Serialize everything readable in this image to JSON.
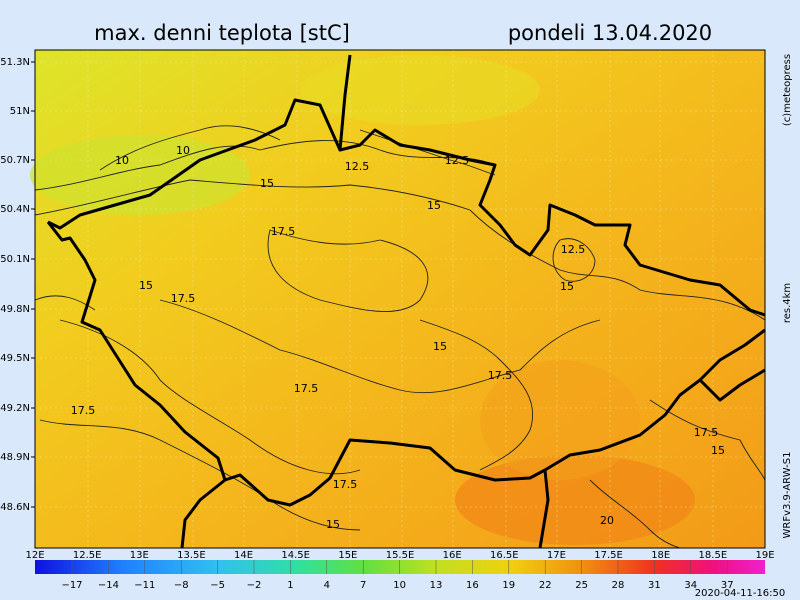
{
  "header": {
    "title": "max. denni teplota [stC]",
    "date": "pondeli 13.04.2020"
  },
  "map": {
    "latitude_labels": [
      "51.3N",
      "51N",
      "50.7N",
      "50.4N",
      "50.1N",
      "49.8N",
      "49.5N",
      "49.2N",
      "48.9N",
      "48.6N"
    ],
    "longitude_labels": [
      "12E",
      "12.5E",
      "13E",
      "13.5E",
      "14E",
      "14.5E",
      "15E",
      "15.5E",
      "16E",
      "16.5E",
      "17E",
      "17.5E",
      "18E",
      "18.5E",
      "19E"
    ],
    "contour_labels": [
      "10",
      "10",
      "12.5",
      "12.5",
      "15",
      "15",
      "17.5",
      "12.5",
      "15",
      "17.5",
      "15",
      "15",
      "17.5",
      "17.5",
      "17.5",
      "17.5",
      "15",
      "17.5",
      "15",
      "20"
    ]
  },
  "colorbar": {
    "labels": [
      "−17",
      "−14",
      "−11",
      "−8",
      "−5",
      "−2",
      "1",
      "4",
      "7",
      "10",
      "13",
      "16",
      "19",
      "22",
      "25",
      "28",
      "31",
      "34",
      "37"
    ]
  },
  "side_text": {
    "copyright": "(c)meteopress",
    "resolution": "res.4km",
    "model": "WRFv3.9-ARW-S1",
    "timestamp": "2020-04-11-16:50"
  }
}
